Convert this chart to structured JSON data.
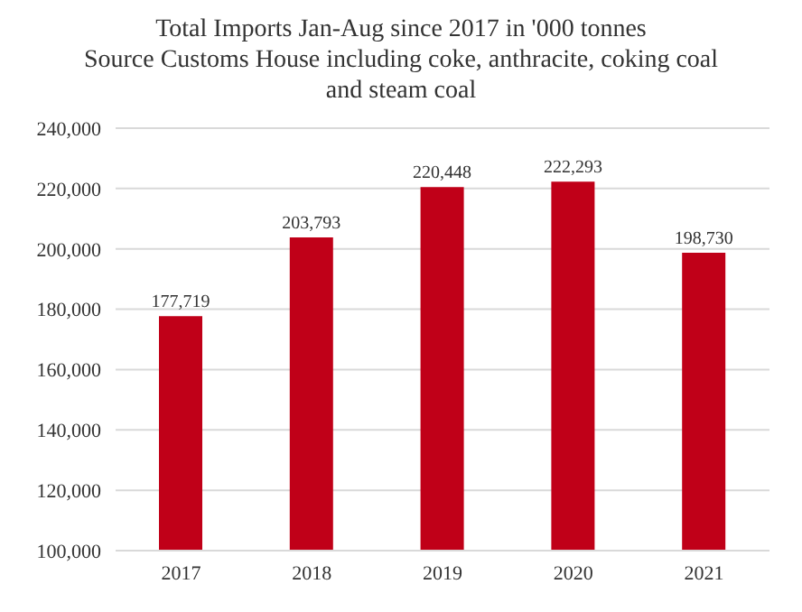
{
  "chart_data": {
    "type": "bar",
    "title": "Total Imports Jan-Aug since 2017 in '000 tonnes",
    "subtitle": "Source Customs House including coke, anthracite, coking coal and steam coal",
    "categories": [
      "2017",
      "2018",
      "2019",
      "2020",
      "2021"
    ],
    "values": [
      177719,
      203793,
      220448,
      222293,
      198730
    ],
    "value_labels": [
      "177,719",
      "203,793",
      "220,448",
      "222,293",
      "198,730"
    ],
    "color": "#c00018",
    "ylim": [
      100000,
      240000
    ],
    "yticks": [
      {
        "value": 100000,
        "label": "100,000"
      },
      {
        "value": 120000,
        "label": "120,000"
      },
      {
        "value": 140000,
        "label": "140,000"
      },
      {
        "value": 160000,
        "label": "160,000"
      },
      {
        "value": 180000,
        "label": "180,000"
      },
      {
        "value": 200000,
        "label": "200,000"
      },
      {
        "value": 220000,
        "label": "220,000"
      },
      {
        "value": 240000,
        "label": "240,000"
      }
    ],
    "grid": "y"
  }
}
